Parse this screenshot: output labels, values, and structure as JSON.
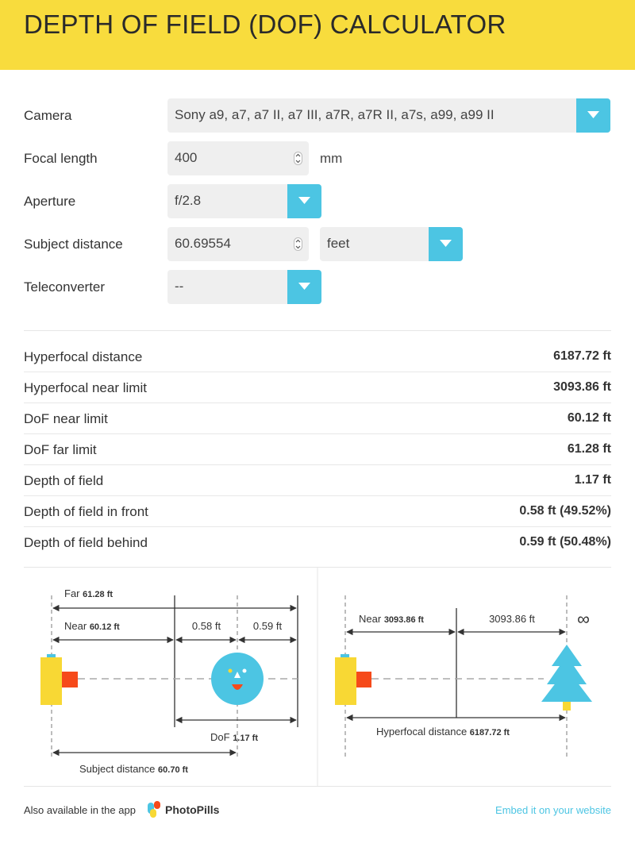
{
  "header": {
    "title": "DEPTH OF FIELD (DOF) CALCULATOR"
  },
  "form": {
    "camera": {
      "label": "Camera",
      "value": "Sony a9, a7, a7 II, a7 III, a7R, a7R II, a7s, a99, a99 II"
    },
    "focal_length": {
      "label": "Focal length",
      "value": "400",
      "unit": "mm"
    },
    "aperture": {
      "label": "Aperture",
      "value": "f/2.8"
    },
    "subject_distance": {
      "label": "Subject distance",
      "value": "60.69554",
      "unit": "feet"
    },
    "teleconverter": {
      "label": "Teleconverter",
      "value": "--"
    }
  },
  "results": [
    {
      "label": "Hyperfocal distance",
      "value": "6187.72 ft"
    },
    {
      "label": "Hyperfocal near limit",
      "value": "3093.86 ft"
    },
    {
      "label": "DoF near limit",
      "value": "60.12 ft"
    },
    {
      "label": "DoF far limit",
      "value": "61.28 ft"
    },
    {
      "label": "Depth of field",
      "value": "1.17 ft"
    },
    {
      "label": "Depth of field in front",
      "value": "0.58 ft (49.52%)"
    },
    {
      "label": "Depth of field behind",
      "value": "0.59 ft (50.48%)"
    }
  ],
  "diagram_left": {
    "far_label": "Far",
    "far_value": "61.28 ft",
    "near_label": "Near",
    "near_value": "60.12 ft",
    "front_value": "0.58 ft",
    "behind_value": "0.59 ft",
    "dof_label": "DoF",
    "dof_value": "1.17 ft",
    "subject_label": "Subject distance",
    "subject_value": "60.70 ft"
  },
  "diagram_right": {
    "near_label": "Near",
    "near_value": "3093.86 ft",
    "mid_value": "3093.86 ft",
    "infinity": "∞",
    "hyperfocal_label": "Hyperfocal distance",
    "hyperfocal_value": "6187.72 ft"
  },
  "footer": {
    "app_text": "Also available in the app",
    "brand": "PhotoPills",
    "embed_link": "Embed it on your website"
  },
  "colors": {
    "header": "#f8dc3d",
    "accent": "#4cc5e3",
    "camera_body": "#f8d834",
    "lens": "#f64a1a",
    "tree": "#4cc5e3"
  },
  "icons": {
    "dropdown": "chevron-down-icon",
    "spinner": "up-down-arrows-icon",
    "logo": "photopills-logo-icon"
  }
}
